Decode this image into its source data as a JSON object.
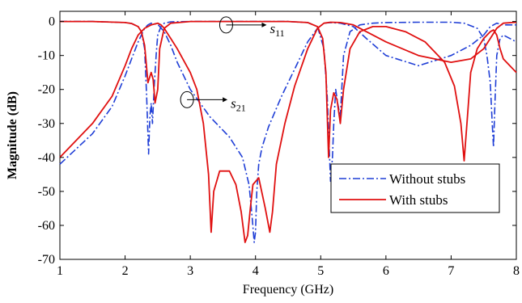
{
  "chart_data": {
    "type": "line",
    "xlabel": "Frequency (GHz)",
    "ylabel": "Magnitude (dB)",
    "xlim": [
      1,
      8
    ],
    "ylim": [
      -70,
      3
    ],
    "xticks": [
      1,
      2,
      3,
      4,
      5,
      6,
      7,
      8
    ],
    "yticks": [
      0,
      -10,
      -20,
      -30,
      -40,
      -50,
      -60,
      -70
    ],
    "grid": false,
    "legend_position": "bottom-right",
    "annotations": [
      {
        "symbol": "s",
        "subscript": "11",
        "near_x": 3.55,
        "near_y": -1
      },
      {
        "symbol": "s",
        "subscript": "21",
        "near_x": 2.95,
        "near_y": -23
      }
    ],
    "series": [
      {
        "name": "Without stubs",
        "color": "#1f3ed6",
        "dash": "dashdot",
        "traces": [
          {
            "label": "s11",
            "x": [
              1,
              1.5,
              2,
              2.1,
              2.2,
              2.25,
              2.3,
              2.33,
              2.36,
              2.38,
              2.4,
              2.42,
              2.45,
              2.48,
              2.5,
              2.55,
              2.6,
              2.7,
              3,
              3.5,
              4,
              4.5,
              4.8,
              4.95,
              5.05,
              5.1,
              5.15,
              5.18,
              5.2,
              5.23,
              5.26,
              5.3,
              5.35,
              5.45,
              5.6,
              5.8,
              6,
              6.5,
              7,
              7.2,
              7.4,
              7.5,
              7.55,
              7.6,
              7.63,
              7.65,
              7.67,
              7.7,
              7.75,
              7.8,
              7.9,
              8
            ],
            "y": [
              0,
              0,
              -0.3,
              -0.6,
              -1.5,
              -3,
              -8,
              -22,
              -39,
              -28,
              -24,
              -30,
              -18,
              -9,
              -4,
              -1.5,
              -0.5,
              -0.1,
              0,
              0,
              0,
              0,
              -0.3,
              -1.5,
              -8,
              -22,
              -47,
              -40,
              -30,
              -20,
              -24,
              -28,
              -10,
              -3,
              -1,
              -0.5,
              -0.3,
              -0.2,
              -0.2,
              -0.5,
              -2,
              -5,
              -10,
              -18,
              -30,
              -37,
              -25,
              -10,
              -5,
              -4,
              -5,
              -6
            ]
          },
          {
            "label": "s21",
            "x": [
              1,
              1.5,
              1.8,
              2,
              2.1,
              2.2,
              2.25,
              2.3,
              2.35,
              2.4,
              2.5,
              2.6,
              2.7,
              2.8,
              3,
              3.3,
              3.6,
              3.8,
              3.9,
              3.95,
              3.98,
              4,
              4.02,
              4.05,
              4.1,
              4.2,
              4.4,
              4.6,
              4.8,
              4.95,
              5.05,
              5.15,
              5.3,
              5.5,
              5.7,
              6,
              6.5,
              7,
              7.3,
              7.5,
              7.6,
              7.7,
              7.8,
              8
            ],
            "y": [
              -42,
              -33,
              -25,
              -16,
              -11,
              -6,
              -4,
              -2,
              -1,
              -0.5,
              -0.8,
              -3,
              -7,
              -12,
              -20,
              -28,
              -34,
              -40,
              -48,
              -58,
              -65,
              -62,
              -50,
              -42,
              -37,
              -31,
              -22,
              -14,
              -6,
              -2,
              -0.5,
              -0.3,
              -0.5,
              -1.5,
              -5,
              -10,
              -13,
              -10,
              -7,
              -4,
              -1.5,
              -0.5,
              -1,
              -1
            ]
          }
        ]
      },
      {
        "name": "With stubs",
        "color": "#e01010",
        "dash": "solid",
        "traces": [
          {
            "label": "s11",
            "x": [
              1,
              1.5,
              2,
              2.1,
              2.2,
              2.25,
              2.3,
              2.35,
              2.4,
              2.43,
              2.46,
              2.5,
              2.53,
              2.6,
              2.7,
              3,
              3.5,
              4,
              4.5,
              4.8,
              4.95,
              5.03,
              5.08,
              5.12,
              5.15,
              5.2,
              5.25,
              5.3,
              5.35,
              5.45,
              5.6,
              5.8,
              6,
              6.3,
              6.6,
              6.9,
              7.05,
              7.15,
              7.2,
              7.25,
              7.3,
              7.4,
              7.5,
              7.6,
              7.65,
              7.7,
              7.75,
              7.8,
              7.9,
              8
            ],
            "y": [
              0,
              0,
              -0.3,
              -0.6,
              -1.5,
              -3,
              -7,
              -18,
              -15,
              -17,
              -24,
              -20,
              -8,
              -2,
              -0.5,
              0,
              0,
              0,
              0,
              -0.3,
              -1.5,
              -5,
              -15,
              -40,
              -26,
              -21,
              -23,
              -30,
              -20,
              -8,
              -3,
              -1.5,
              -1.5,
              -3,
              -6,
              -12,
              -19,
              -30,
              -41,
              -28,
              -15,
              -8,
              -5,
              -3,
              -2.5,
              -4,
              -8,
              -11,
              -13,
              -15
            ]
          },
          {
            "label": "s21",
            "x": [
              1,
              1.5,
              1.8,
              2,
              2.1,
              2.2,
              2.3,
              2.4,
              2.5,
              2.55,
              2.6,
              2.65,
              2.7,
              2.8,
              3,
              3.1,
              3.2,
              3.28,
              3.32,
              3.36,
              3.45,
              3.6,
              3.7,
              3.78,
              3.84,
              3.88,
              3.92,
              3.96,
              4.05,
              4.15,
              4.22,
              4.26,
              4.32,
              4.45,
              4.6,
              4.8,
              4.95,
              5.05,
              5.15,
              5.3,
              5.5,
              5.7,
              6,
              6.5,
              7,
              7.3,
              7.5,
              7.6,
              7.7,
              7.8,
              8
            ],
            "y": [
              -40,
              -30,
              -22,
              -13,
              -8,
              -4,
              -2,
              -1,
              -0.5,
              -1,
              -2,
              -3.5,
              -5,
              -8,
              -15,
              -20,
              -30,
              -45,
              -62,
              -50,
              -44,
              -44,
              -48,
              -56,
              -65,
              -63,
              -55,
              -48,
              -46,
              -55,
              -62,
              -56,
              -42,
              -30,
              -19,
              -8,
              -2,
              -0.5,
              -0.2,
              -0.3,
              -1,
              -3,
              -6,
              -10,
              -12,
              -11,
              -8,
              -5,
              -2,
              -0.5,
              -0.2
            ]
          }
        ]
      }
    ]
  }
}
